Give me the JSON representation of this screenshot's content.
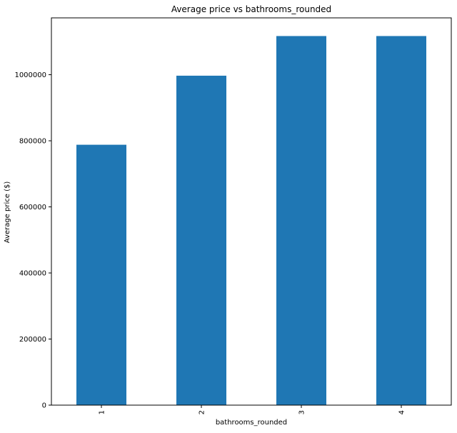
{
  "chart_data": {
    "type": "bar",
    "title": "Average price vs bathrooms_rounded",
    "xlabel": "bathrooms_rounded",
    "ylabel": "Average price ($)",
    "categories": [
      "1",
      "2",
      "3",
      "4"
    ],
    "values": [
      788000,
      997000,
      1117000,
      1117000
    ],
    "ylim": [
      0,
      1172000
    ],
    "yticks": [
      0,
      200000,
      400000,
      600000,
      800000,
      1000000
    ],
    "ytick_labels": [
      "0",
      "200000",
      "400000",
      "600000",
      "800000",
      "1000000"
    ],
    "grid": false,
    "legend": "none",
    "bar_color": "#1f77b4",
    "xtick_rotation": "vertical"
  }
}
